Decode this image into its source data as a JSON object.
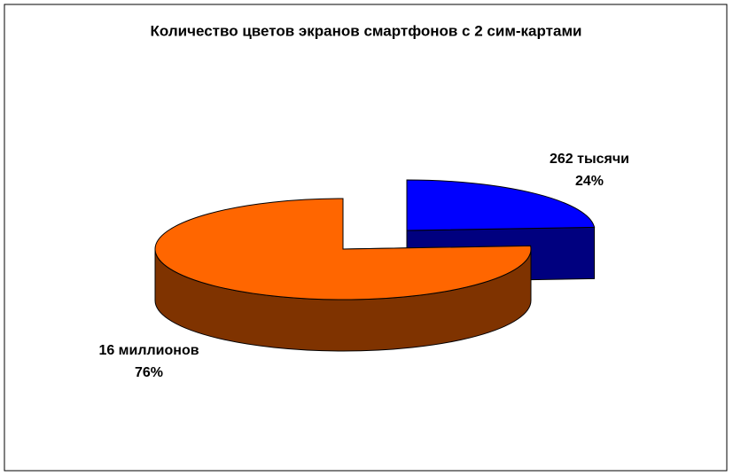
{
  "chart_data": {
    "type": "pie",
    "title": "Количество цветов экранов смартфонов с 2 сим-картами",
    "categories": [
      "262 тысячи",
      "16 миллионов"
    ],
    "values": [
      24,
      76
    ],
    "value_labels": [
      "24%",
      "76%"
    ],
    "colors": [
      "#0000ff",
      "#ff6600"
    ]
  }
}
